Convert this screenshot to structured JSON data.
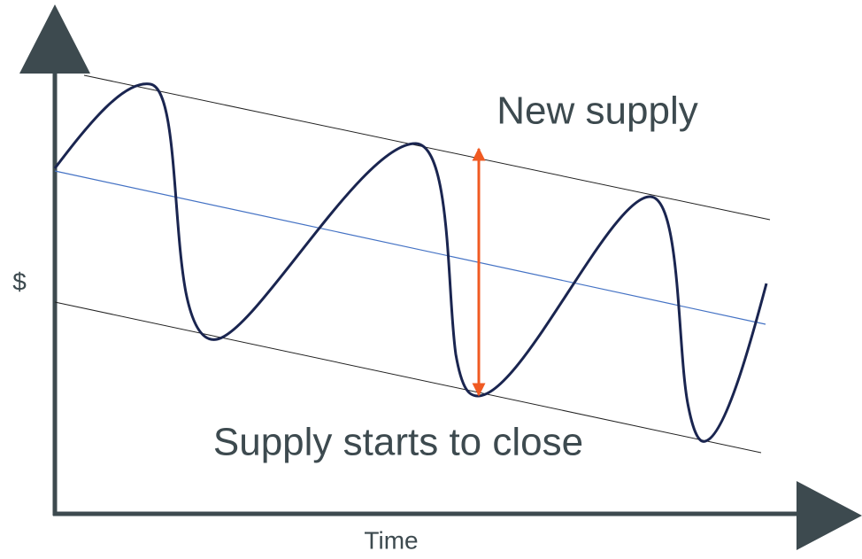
{
  "labels": {
    "top": "New supply",
    "bottom": "Supply starts to close",
    "y_axis": "$",
    "x_axis": "Time"
  }
}
